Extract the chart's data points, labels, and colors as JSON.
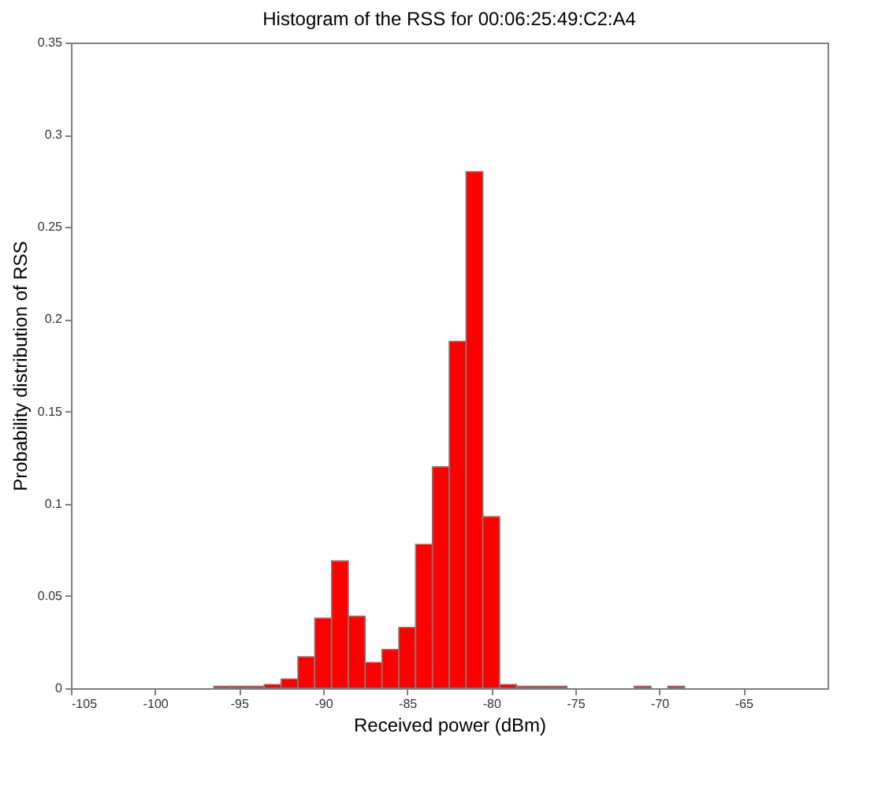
{
  "chart_data": {
    "type": "histogram",
    "title": "Histogram of the RSS for 00:06:25:49:C2:A4",
    "xlabel": "Received power (dBm)",
    "ylabel": "Probability distribution of RSS",
    "bins": [
      -96.5,
      -95.5,
      -94.5,
      -93.5,
      -92.5,
      -91.5,
      -90.5,
      -89.5,
      -88.5,
      -87.5,
      -86.5,
      -85.5,
      -84.5,
      -83.5,
      -82.5,
      -81.5,
      -80.5,
      -79.5,
      -78.5,
      -77.5,
      -76.5,
      -75.5,
      -74.5,
      -73.5,
      -72.5,
      -71.5,
      -70.5,
      -69.5,
      -68.5
    ],
    "values": [
      0.001,
      0.001,
      0.001,
      0.002,
      0.005,
      0.017,
      0.038,
      0.069,
      0.039,
      0.014,
      0.021,
      0.033,
      0.078,
      0.12,
      0.188,
      0.28,
      0.093,
      0.002,
      0.001,
      0.001,
      0.001,
      0,
      0,
      0,
      0,
      0.001,
      0,
      0.001
    ],
    "color": "#ff0000",
    "xlim": [
      -105,
      -60
    ],
    "xticks": [
      -105,
      -100,
      -95,
      -90,
      -85,
      -80,
      -75,
      -70,
      -65
    ],
    "ylim": [
      0,
      0.35
    ],
    "yticks": [
      0,
      0.05,
      0.1,
      0.15,
      0.2,
      0.25,
      0.3,
      0.35
    ],
    "grid": false
  }
}
